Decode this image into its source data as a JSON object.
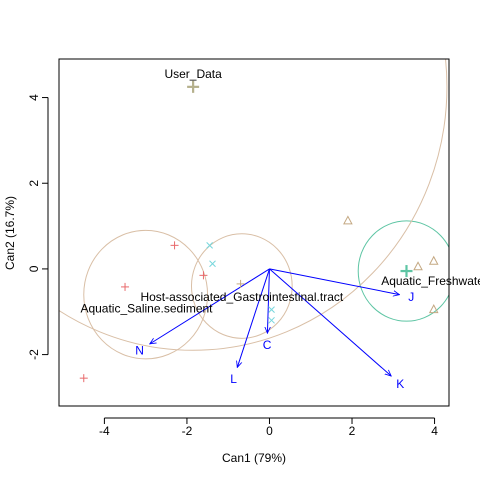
{
  "chart_data": {
    "type": "scatter",
    "title": "",
    "xlabel": "Can1 (79%)",
    "ylabel": "Can2 (16.7%)",
    "xlim": [
      -5.1,
      4.35
    ],
    "ylim": [
      -3.2,
      4.9
    ],
    "x_ticks": [
      -4,
      -2,
      0,
      2,
      4
    ],
    "y_ticks": [
      -2,
      0,
      2,
      4
    ],
    "grid": false,
    "colors": {
      "saline": "#e8696b",
      "gastro": "#c4a882",
      "freshwater": "#c4a882",
      "user": "#b5b08c",
      "cyan": "#77d6dc",
      "freshwater_circle": "#5ec5a4",
      "arrows": "#0000ff",
      "circle": "#d9bfa6"
    },
    "series": [
      {
        "name": "Aquatic_Saline.sediment",
        "marker": "plus",
        "color": "#e8696b",
        "points": [
          [
            -4.5,
            -2.55
          ],
          [
            -3.5,
            -0.42
          ],
          [
            -2.3,
            0.55
          ],
          [
            -1.6,
            -0.15
          ]
        ]
      },
      {
        "name": "Host-associated_Gastrointestinal.tract",
        "marker": "x",
        "color": "#77d6dc",
        "points": [
          [
            -1.45,
            0.55
          ],
          [
            -1.38,
            0.12
          ],
          [
            0.05,
            -0.95
          ],
          [
            0.05,
            -1.2
          ]
        ]
      },
      {
        "name": "Host-associated_Gastrointestinal.tract",
        "marker": "plus",
        "color": "#c4a882",
        "points": [
          [
            -0.7,
            -0.35
          ]
        ]
      },
      {
        "name": "Aquatic_Freshwater",
        "marker": "triangle",
        "color": "#c4a882",
        "points": [
          [
            1.9,
            1.12
          ],
          [
            3.6,
            0.05
          ],
          [
            3.98,
            0.18
          ],
          [
            3.98,
            -0.95
          ]
        ]
      },
      {
        "name": "User_Data",
        "marker": "plus",
        "color": "#b5b08c",
        "points": [
          [
            -1.85,
            4.25
          ]
        ]
      }
    ],
    "centroids": [
      {
        "name": "User_Data",
        "x": -1.85,
        "y": 4.25,
        "color": "#b5b08c"
      },
      {
        "name": "Aquatic_Freshwater",
        "x": 3.32,
        "y": -0.05,
        "color": "#5ec5a4"
      }
    ],
    "group_labels": [
      {
        "text": "User_Data",
        "x": -1.85,
        "y": 4.55
      },
      {
        "text": "Aquatic_Freshwater",
        "x": 4.0,
        "y": -0.28
      },
      {
        "text": "Host-associated_Gastrointestinal.tract",
        "x": -0.67,
        "y": -0.65
      },
      {
        "text": "Aquatic_Saline.sediment",
        "x": -2.98,
        "y": -0.92
      }
    ],
    "circles": [
      {
        "cx": -3.0,
        "cy": -0.6,
        "r": 1.5,
        "color": "#d9bfa6"
      },
      {
        "cx": -0.67,
        "cy": -0.4,
        "r": 1.22,
        "color": "#d9bfa6"
      },
      {
        "cx": 3.32,
        "cy": -0.05,
        "r": 1.17,
        "color": "#5ec5a4"
      },
      {
        "cx": -1.85,
        "cy": 4.25,
        "r": 6.15,
        "color": "#d9bfa6"
      }
    ],
    "arrows": [
      {
        "label": "N",
        "x": -2.9,
        "y": -1.75
      },
      {
        "label": "L",
        "x": -0.78,
        "y": -2.3
      },
      {
        "label": "C",
        "x": -0.05,
        "y": -1.5
      },
      {
        "label": "J",
        "x": 3.15,
        "y": -0.6
      },
      {
        "label": "K",
        "x": 2.95,
        "y": -2.5
      }
    ]
  }
}
